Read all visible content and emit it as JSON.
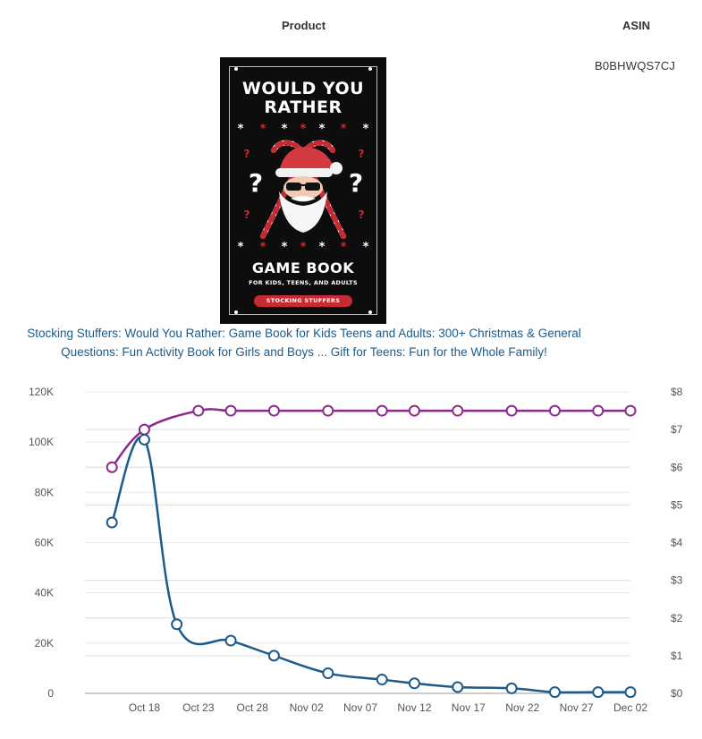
{
  "table": {
    "product_header": "Product",
    "asin_header": "ASIN",
    "asin_value": "B0BHWQS7CJ",
    "product_title": "Stocking Stuffers: Would You Rather: Game Book for Kids Teens and Adults: 300+ Christmas & General Questions: Fun Activity Book for Girls and Boys ... Gift for Teens: Fun for the Whole Family!",
    "cover": {
      "title_line1": "WOULD YOU",
      "title_line2": "RATHER",
      "game_book": "GAME BOOK",
      "subtitle": "FOR KIDS, TEENS, AND ADULTS",
      "badge": "STOCKING STUFFERS",
      "icon": "santa-candy-cane-cover-art"
    }
  },
  "colors": {
    "bsr_line": "#1b5a8a",
    "price_line": "#8b2a8c",
    "link": "#1a5a8a",
    "grid": "#dddddd",
    "cover_red": "#c62b34"
  },
  "chart_data": {
    "type": "line",
    "x": [
      "Oct 15",
      "Oct 18",
      "Oct 21",
      "Oct 23",
      "Oct 26",
      "Oct 30",
      "Nov 04",
      "Nov 09",
      "Nov 12",
      "Nov 16",
      "Nov 21",
      "Nov 25",
      "Nov 29",
      "Dec 02"
    ],
    "x_ticks": [
      "Oct 18",
      "Oct 23",
      "Oct 28",
      "Nov 02",
      "Nov 07",
      "Nov 12",
      "Nov 17",
      "Nov 22",
      "Nov 27",
      "Dec 02"
    ],
    "series": [
      {
        "axis": "left",
        "color": "#1b5a8a",
        "values": [
          68000,
          101000,
          27500,
          null,
          21000,
          15000,
          8000,
          5500,
          4000,
          2500,
          2000,
          500,
          500,
          500
        ]
      },
      {
        "axis": "right",
        "color": "#8b2a8c",
        "values": [
          6.0,
          7.0,
          null,
          7.5,
          7.5,
          7.5,
          7.5,
          7.5,
          7.5,
          7.5,
          7.5,
          7.5,
          7.5,
          7.5
        ]
      }
    ],
    "y_left": {
      "ticks": [
        "0",
        "20K",
        "40K",
        "60K",
        "80K",
        "100K",
        "120K"
      ],
      "ylim": [
        0,
        120000
      ]
    },
    "y_right": {
      "ticks": [
        "$0",
        "$1",
        "$2",
        "$3",
        "$4",
        "$5",
        "$6",
        "$7",
        "$8"
      ],
      "ylim": [
        0,
        8
      ]
    },
    "grid": true
  }
}
